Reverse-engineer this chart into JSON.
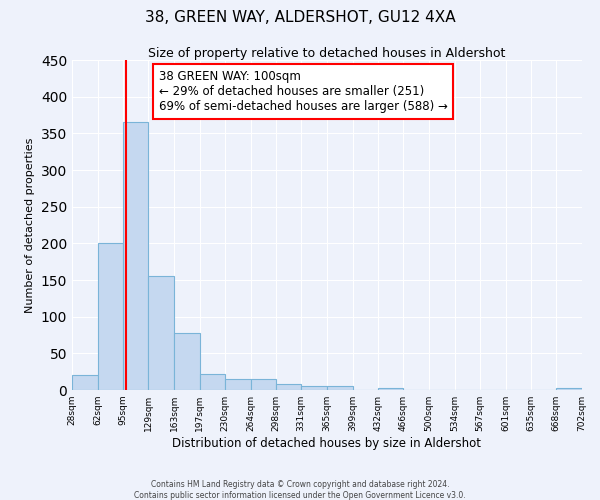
{
  "title": "38, GREEN WAY, ALDERSHOT, GU12 4XA",
  "subtitle": "Size of property relative to detached houses in Aldershot",
  "xlabel": "Distribution of detached houses by size in Aldershot",
  "ylabel": "Number of detached properties",
  "bar_edges": [
    28,
    62,
    95,
    129,
    163,
    197,
    230,
    264,
    298,
    331,
    365,
    399,
    432,
    466,
    500,
    534,
    567,
    601,
    635,
    668,
    702
  ],
  "bar_heights": [
    20,
    200,
    365,
    155,
    78,
    22,
    15,
    15,
    8,
    5,
    5,
    0,
    3,
    0,
    0,
    0,
    0,
    0,
    0,
    3
  ],
  "bar_color": "#c5d8f0",
  "bar_edgecolor": "#7ab4d8",
  "property_line_x": 100,
  "property_line_color": "red",
  "annotation_text": "38 GREEN WAY: 100sqm\n← 29% of detached houses are smaller (251)\n69% of semi-detached houses are larger (588) →",
  "annotation_box_color": "white",
  "annotation_box_edgecolor": "red",
  "ylim": [
    0,
    450
  ],
  "yticks": [
    0,
    50,
    100,
    150,
    200,
    250,
    300,
    350,
    400,
    450
  ],
  "background_color": "#eef2fb",
  "grid_color": "white",
  "footer_line1": "Contains HM Land Registry data © Crown copyright and database right 2024.",
  "footer_line2": "Contains public sector information licensed under the Open Government Licence v3.0."
}
